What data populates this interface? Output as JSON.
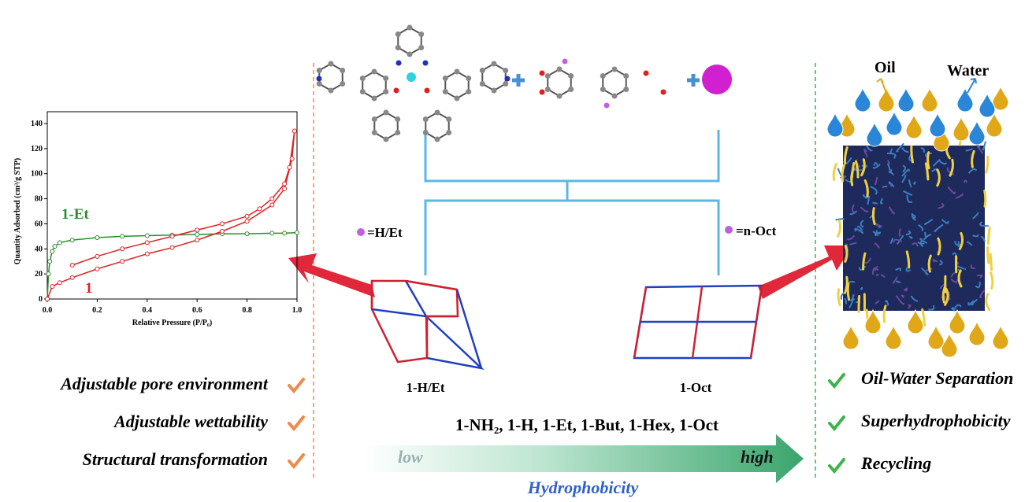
{
  "chart_data": {
    "type": "line",
    "xlabel": "Relative Pressure (P/P₀)",
    "ylabel": "Quantity Adsorbed (cm³/g STP)",
    "xlim": [
      0,
      1
    ],
    "ylim": [
      0,
      140
    ],
    "xticks": [
      {
        "value": 0,
        "label": "0.0"
      },
      0.2,
      0.4,
      0.6,
      0.8,
      {
        "value": 1,
        "label": "1.0"
      }
    ],
    "yticks": [
      0,
      20,
      40,
      60,
      80,
      100,
      120,
      140
    ],
    "series": [
      {
        "name": "1-Et",
        "color": "#2e8b2e",
        "x": [
          0.0,
          0.005,
          0.01,
          0.02,
          0.03,
          0.05,
          0.1,
          0.2,
          0.3,
          0.4,
          0.5,
          0.6,
          0.7,
          0.8,
          0.9,
          0.95,
          1.0
        ],
        "values": [
          0,
          20,
          30,
          38,
          42,
          45,
          47,
          49,
          50,
          50.5,
          51,
          51.5,
          52,
          52,
          52.5,
          52.5,
          53
        ]
      },
      {
        "name": "1",
        "color": "#e02020",
        "x": [
          0.0,
          0.02,
          0.05,
          0.1,
          0.2,
          0.3,
          0.4,
          0.5,
          0.6,
          0.7,
          0.8,
          0.9,
          0.95,
          0.98,
          0.99,
          0.97,
          0.95,
          0.9,
          0.85,
          0.8,
          0.7,
          0.6,
          0.5,
          0.4,
          0.3,
          0.2,
          0.1
        ],
        "values": [
          0,
          10,
          13,
          17,
          24,
          30,
          36,
          41,
          47,
          54,
          62,
          75,
          88,
          112,
          134,
          105,
          92,
          80,
          72,
          66,
          60,
          55,
          50,
          45,
          40,
          34,
          27
        ]
      }
    ]
  },
  "diagram": {
    "ligand_h_et": "=H/Et",
    "ligand_n_oct": "=n-Oct",
    "framework_left": "1-H/Et",
    "framework_right": "1-Oct",
    "series_list": "1-NH₂, 1-H, 1-Et, 1-But, 1-Hex, 1-Oct",
    "gradient_low": "low",
    "gradient_high": "high",
    "gradient_label": "Hydrophobicity",
    "left_features": [
      "Adjustable pore environment",
      "Adjustable wettability",
      "Structural transformation"
    ],
    "right_features": [
      "Oil-Water Separation",
      "Superhydrophobicity",
      "Recycling"
    ],
    "oil": "Oil",
    "water": "Water"
  }
}
